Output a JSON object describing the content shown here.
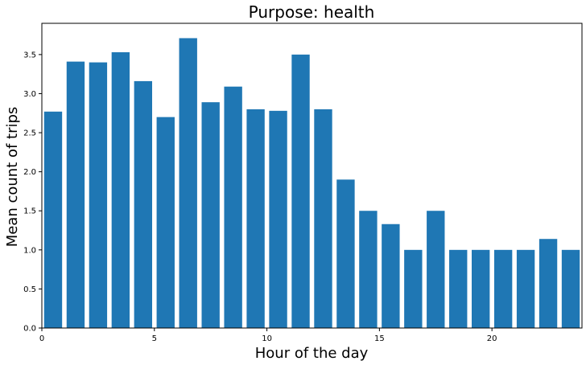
{
  "chart_data": {
    "type": "bar",
    "title": "Purpose: health",
    "xlabel": "Hour of the day",
    "ylabel": "Mean count of trips",
    "x": [
      0,
      1,
      2,
      3,
      4,
      5,
      6,
      7,
      8,
      9,
      10,
      11,
      12,
      13,
      14,
      15,
      16,
      17,
      18,
      19,
      20,
      21,
      22,
      23
    ],
    "values": [
      2.77,
      3.41,
      3.4,
      3.53,
      3.16,
      2.7,
      3.71,
      2.89,
      3.09,
      2.8,
      2.78,
      3.5,
      2.8,
      1.9,
      1.5,
      1.33,
      1.0,
      1.5,
      1.0,
      1.0,
      1.0,
      1.0,
      1.14,
      1.0
    ],
    "xlim": [
      0,
      24
    ],
    "ylim": [
      0,
      3.9
    ],
    "xticks": [
      0,
      5,
      10,
      15,
      20
    ],
    "yticks": [
      0.0,
      0.5,
      1.0,
      1.5,
      2.0,
      2.5,
      3.0,
      3.5
    ],
    "bar_color": "#1f77b4",
    "grid": false,
    "legend": "none"
  }
}
